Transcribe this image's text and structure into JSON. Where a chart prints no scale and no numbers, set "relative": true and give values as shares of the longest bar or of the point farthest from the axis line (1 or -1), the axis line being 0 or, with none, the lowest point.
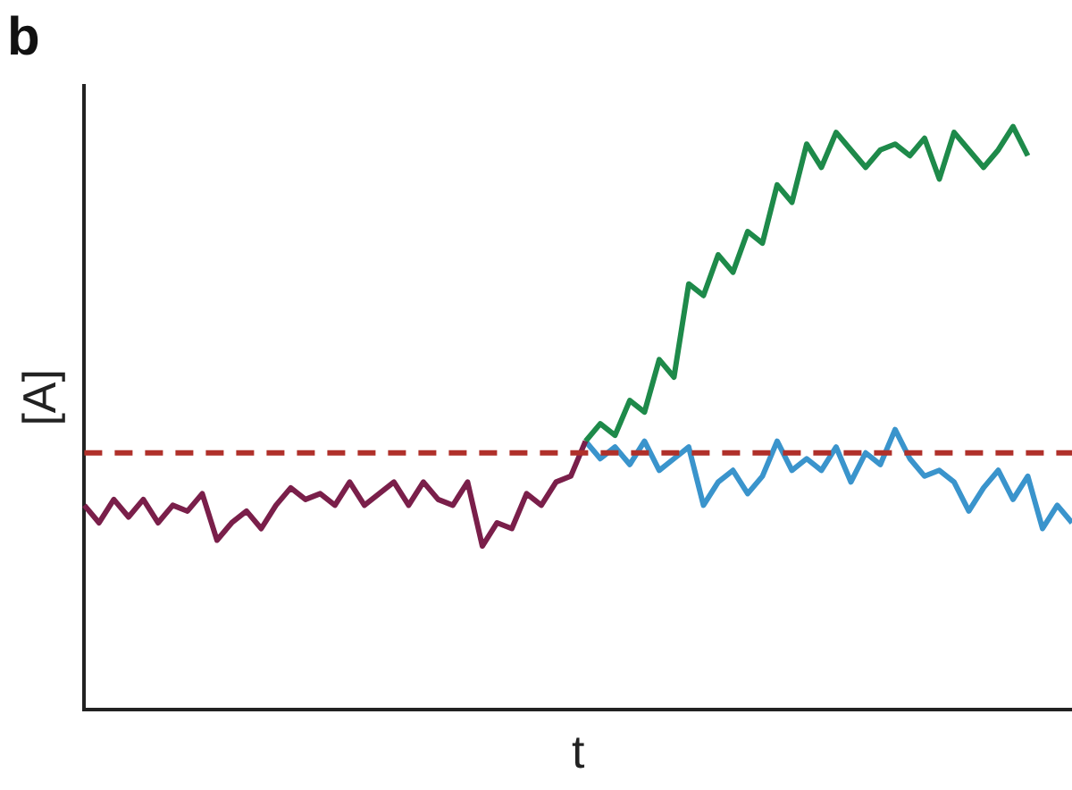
{
  "chart_data": {
    "type": "line",
    "title": "b",
    "xlabel": "t",
    "ylabel": "[A]",
    "relative": true,
    "legend": false,
    "grid": false,
    "marker": "none",
    "line_style": "solid",
    "categories": [
      null,
      null,
      null,
      null,
      null,
      null,
      null,
      null,
      null,
      null,
      null,
      null,
      null,
      null,
      null,
      null,
      null,
      null,
      null,
      null,
      null,
      null,
      null,
      null,
      null,
      null,
      null,
      null,
      null,
      null,
      null,
      null,
      null,
      null,
      null,
      null,
      null,
      null,
      null,
      null,
      null,
      null,
      null,
      null,
      null,
      null,
      null,
      null,
      null,
      null,
      null,
      null,
      null,
      null,
      null,
      null,
      null,
      null,
      null,
      null,
      null,
      null,
      null,
      null,
      null,
      null,
      null,
      null
    ],
    "series": [
      {
        "color": "#7a1f4a",
        "values": [
          0.35,
          0.32,
          0.36,
          0.33,
          0.36,
          0.32,
          0.35,
          0.34,
          0.37,
          0.29,
          0.32,
          0.34,
          0.31,
          0.35,
          0.38,
          0.36,
          0.37,
          0.35,
          0.39,
          0.35,
          0.37,
          0.39,
          0.35,
          0.39,
          0.36,
          0.35,
          0.39,
          0.28,
          0.32,
          0.31,
          0.37,
          0.35,
          0.39,
          0.4,
          0.46,
          null,
          null,
          null,
          null,
          null,
          null,
          null,
          null,
          null,
          null,
          null,
          null,
          null,
          null,
          null,
          null,
          null,
          null,
          null,
          null,
          null,
          null,
          null,
          null,
          null,
          null,
          null,
          null,
          null,
          null,
          null,
          null,
          null
        ]
      },
      {
        "color": "#1e8a4a",
        "values": [
          null,
          null,
          null,
          null,
          null,
          null,
          null,
          null,
          null,
          null,
          null,
          null,
          null,
          null,
          null,
          null,
          null,
          null,
          null,
          null,
          null,
          null,
          null,
          null,
          null,
          null,
          null,
          null,
          null,
          null,
          null,
          null,
          null,
          null,
          0.46,
          0.49,
          0.47,
          0.53,
          0.51,
          0.6,
          0.57,
          0.73,
          0.71,
          0.78,
          0.75,
          0.82,
          0.8,
          0.9,
          0.87,
          0.97,
          0.93,
          0.99,
          0.96,
          0.93,
          0.96,
          0.97,
          0.95,
          0.98,
          0.91,
          0.99,
          0.96,
          0.93,
          0.96,
          1,
          0.95,
          null,
          null,
          null
        ]
      },
      {
        "color": "#3a94cc",
        "values": [
          null,
          null,
          null,
          null,
          null,
          null,
          null,
          null,
          null,
          null,
          null,
          null,
          null,
          null,
          null,
          null,
          null,
          null,
          null,
          null,
          null,
          null,
          null,
          null,
          null,
          null,
          null,
          null,
          null,
          null,
          null,
          null,
          null,
          null,
          0.46,
          0.43,
          0.45,
          0.42,
          0.46,
          0.41,
          0.43,
          0.45,
          0.35,
          0.39,
          0.41,
          0.37,
          0.4,
          0.46,
          0.41,
          0.43,
          0.41,
          0.45,
          0.39,
          0.44,
          0.42,
          0.48,
          0.43,
          0.4,
          0.41,
          0.39,
          0.34,
          0.38,
          0.41,
          0.36,
          0.4,
          0.31,
          0.35,
          0.32
        ]
      }
    ],
    "ref_lines": [
      {
        "axis": "y",
        "value": 0.44,
        "color": "#b0302a",
        "line_style": "dashed"
      }
    ]
  }
}
